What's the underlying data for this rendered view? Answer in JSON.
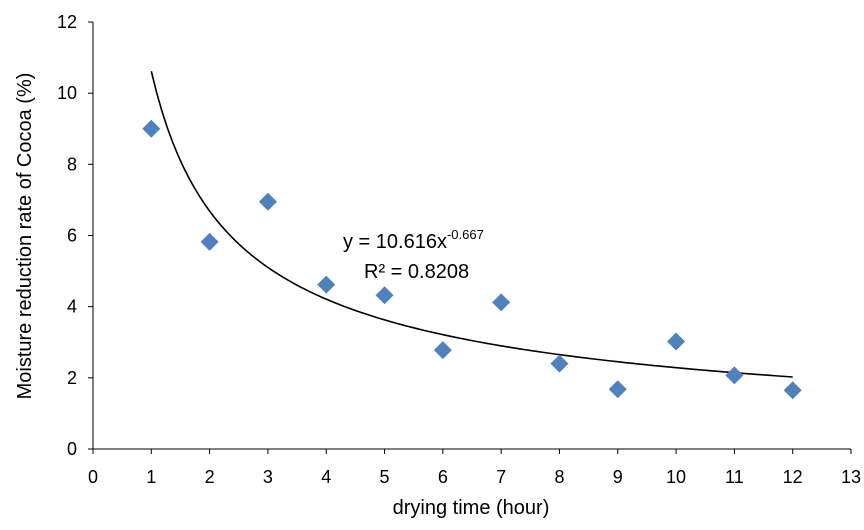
{
  "chart_data": {
    "type": "scatter",
    "title": "",
    "xlabel": "drying time (hour)",
    "ylabel": "Moisture reduction rate of Cocoa (%)",
    "xlim": [
      0,
      13
    ],
    "ylim": [
      0,
      12
    ],
    "x_ticks": [
      0,
      1,
      2,
      3,
      4,
      5,
      6,
      7,
      8,
      9,
      10,
      11,
      12,
      13
    ],
    "y_ticks": [
      0,
      2,
      4,
      6,
      8,
      10,
      12
    ],
    "grid": false,
    "legend": "none",
    "series": [
      {
        "marker": "diamond",
        "color": "#4f81bd",
        "points": [
          {
            "x": 1,
            "y": 9.0
          },
          {
            "x": 2,
            "y": 5.82
          },
          {
            "x": 3,
            "y": 6.95
          },
          {
            "x": 4,
            "y": 4.62
          },
          {
            "x": 5,
            "y": 4.32
          },
          {
            "x": 6,
            "y": 2.78
          },
          {
            "x": 7,
            "y": 4.12
          },
          {
            "x": 8,
            "y": 2.4
          },
          {
            "x": 9,
            "y": 1.68
          },
          {
            "x": 10,
            "y": 3.02
          },
          {
            "x": 11,
            "y": 2.07
          },
          {
            "x": 12,
            "y": 1.65
          }
        ]
      }
    ],
    "trendline": {
      "type": "power",
      "a": 10.616,
      "b": -0.667,
      "x_range": [
        1,
        12
      ],
      "color": "#000000",
      "equation_main": "y = 10.616x",
      "equation_exponent": "-0.667",
      "r_squared": "R² = 0.8208"
    }
  }
}
